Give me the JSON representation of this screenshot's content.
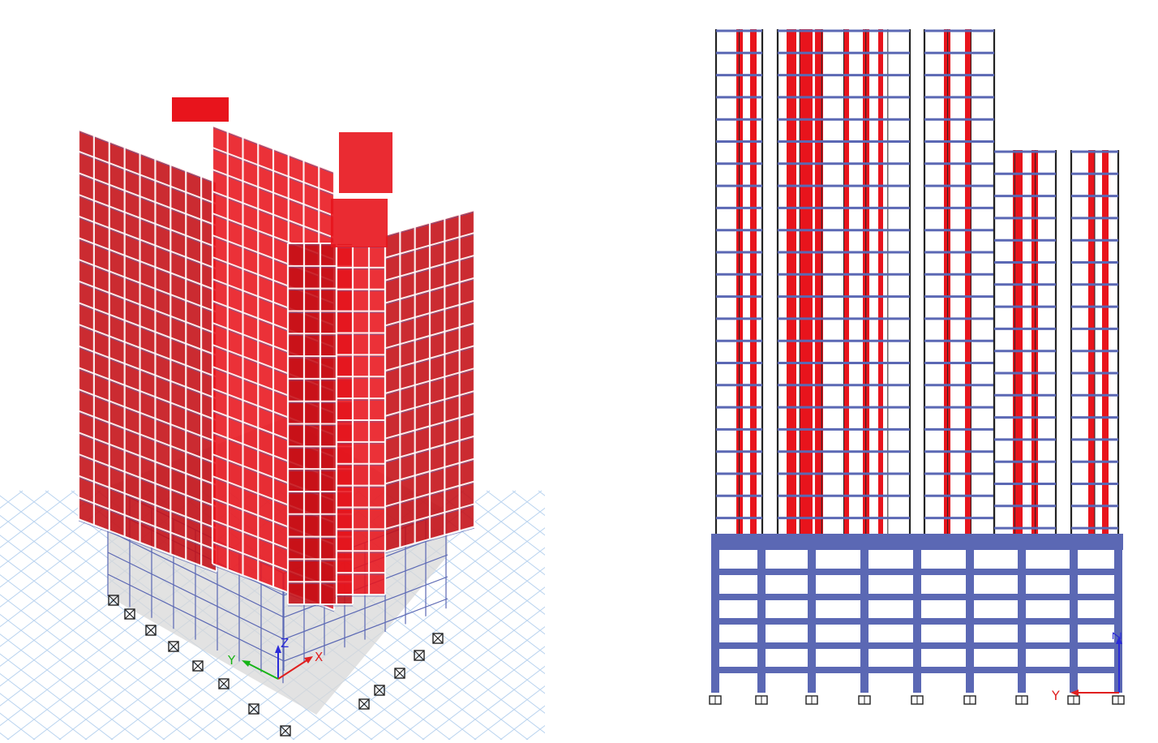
{
  "colors": {
    "shear_wall": "#e8141c",
    "shear_wall_dark": "#c40e14",
    "beam": "#5b68b4",
    "frame_white": "#ffffff",
    "frame_black": "#222222",
    "grid": "#b9d3ef",
    "slab": "#c7c7c7",
    "axis_x": "#e02020",
    "axis_y": "#16b416",
    "axis_z": "#2b2bd8"
  },
  "left_view": {
    "icons": [
      "pin-support-icon",
      "axis-triad-icon"
    ],
    "axis_labels": {
      "x": "X",
      "y": "Y",
      "z": "Z"
    }
  },
  "right_view": {
    "icons": [
      "pin-support-icon",
      "axis-triad-icon"
    ],
    "axis_labels": {
      "y": "Y",
      "z": "Z"
    }
  }
}
